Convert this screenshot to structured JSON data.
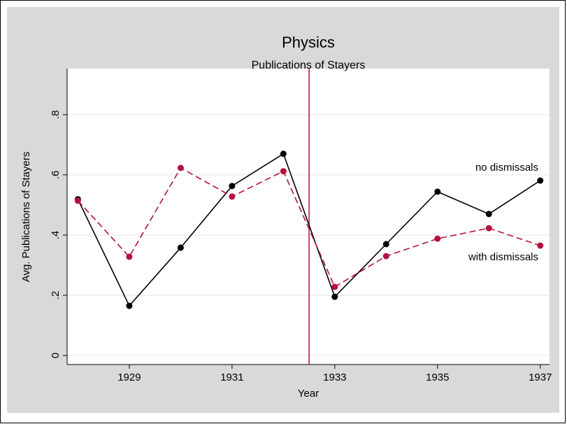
{
  "chart_data": {
    "type": "line",
    "title": "Physics",
    "subtitle": "Publications of Stayers",
    "xlabel": "Year",
    "ylabel": "Avg. Publications of Stayers",
    "x": [
      1928,
      1929,
      1930,
      1931,
      1932,
      1933,
      1934,
      1935,
      1936,
      1937
    ],
    "series": [
      {
        "name": "no dismissals",
        "color": "#000000",
        "dash": false,
        "values": [
          0.519,
          0.165,
          0.358,
          0.563,
          0.67,
          0.195,
          0.37,
          0.544,
          0.47,
          0.581
        ]
      },
      {
        "name": "with dismissals",
        "color": "#b5123e",
        "dash": true,
        "values": [
          0.514,
          0.328,
          0.623,
          0.528,
          0.612,
          0.228,
          0.33,
          0.388,
          0.423,
          0.365
        ]
      }
    ],
    "xline": 1932.5,
    "xline_color": "#b5123e",
    "xlim": [
      1927.79,
      1937.18
    ],
    "xticks": [
      1929,
      1931,
      1933,
      1935,
      1937
    ],
    "ylim": [
      -0.03,
      0.953
    ],
    "yticks": [
      0,
      {
        "value": 0.2,
        "label": ".2"
      },
      {
        "value": 0.4,
        "label": ".4"
      },
      {
        "value": 0.6,
        "label": ".6"
      },
      {
        "value": 0.8,
        "label": ".8"
      }
    ],
    "grid": true
  }
}
